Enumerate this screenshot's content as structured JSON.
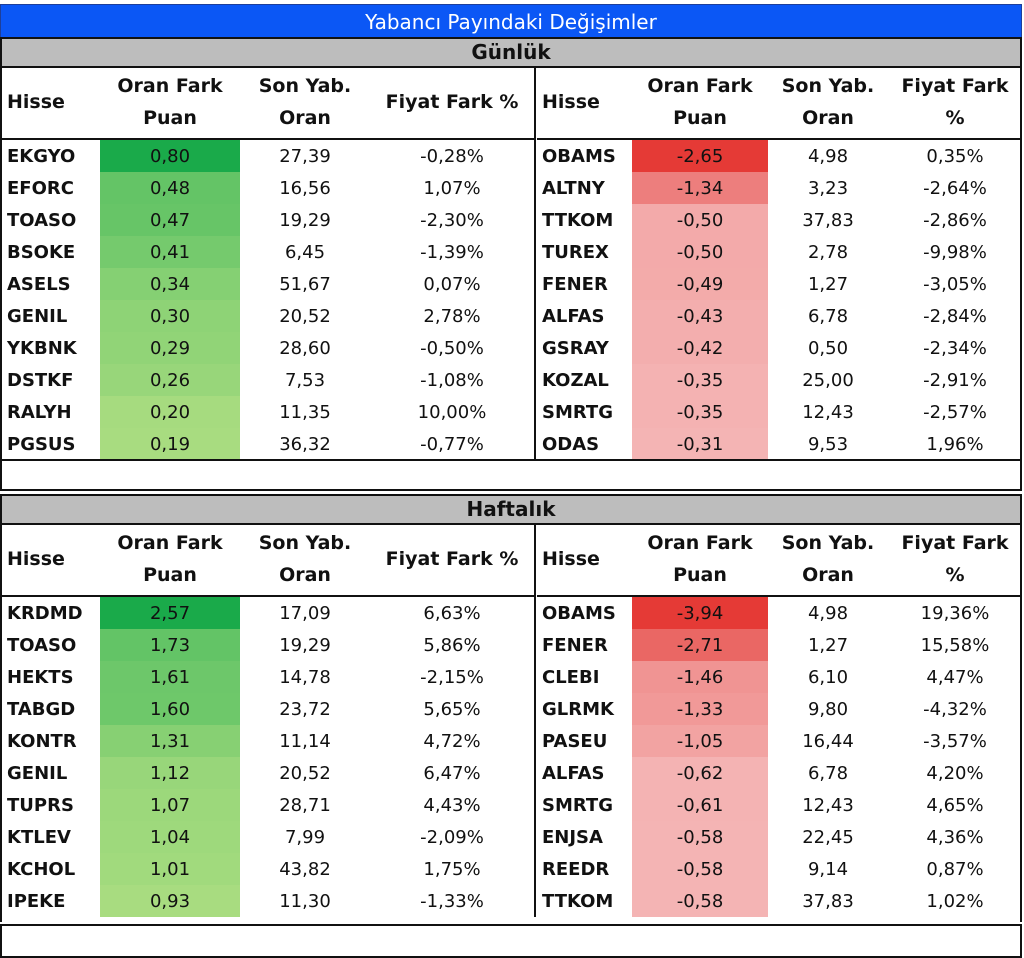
{
  "title": "Yabancı Payındaki Değişimler",
  "colors": {
    "title_bg": "#0b57f5",
    "section_bg": "#bdbdbd",
    "pos_max": "#1aaa4a",
    "pos_min": "#a8dc80",
    "neg_max": "#e53a36",
    "neg_min": "#f4b4b4"
  },
  "headers": {
    "stock": "Hisse",
    "diff_line1": "Oran Fark",
    "diff_line2": "Puan",
    "last_line1": "Son Yab.",
    "last_line2": "Oran",
    "price_left": "Fiyat Fark %",
    "price_right_line1": "Fiyat Fark",
    "price_right_line2": "%"
  },
  "daily": {
    "label": "Günlük",
    "gainers": [
      {
        "stock": "EKGYO",
        "diff": "0,80",
        "last": "27,39",
        "price": "-0,28%",
        "v": 0.8
      },
      {
        "stock": "EFORC",
        "diff": "0,48",
        "last": "16,56",
        "price": "1,07%",
        "v": 0.48
      },
      {
        "stock": "TOASO",
        "diff": "0,47",
        "last": "19,29",
        "price": "-2,30%",
        "v": 0.47
      },
      {
        "stock": "BSOKE",
        "diff": "0,41",
        "last": "6,45",
        "price": "-1,39%",
        "v": 0.41
      },
      {
        "stock": "ASELS",
        "diff": "0,34",
        "last": "51,67",
        "price": "0,07%",
        "v": 0.34
      },
      {
        "stock": "GENIL",
        "diff": "0,30",
        "last": "20,52",
        "price": "2,78%",
        "v": 0.3
      },
      {
        "stock": "YKBNK",
        "diff": "0,29",
        "last": "28,60",
        "price": "-0,50%",
        "v": 0.29
      },
      {
        "stock": "DSTKF",
        "diff": "0,26",
        "last": "7,53",
        "price": "-1,08%",
        "v": 0.26
      },
      {
        "stock": "RALYH",
        "diff": "0,20",
        "last": "11,35",
        "price": "10,00%",
        "v": 0.2
      },
      {
        "stock": "PGSUS",
        "diff": "0,19",
        "last": "36,32",
        "price": "-0,77%",
        "v": 0.19
      }
    ],
    "losers": [
      {
        "stock": "OBAMS",
        "diff": "-2,65",
        "last": "4,98",
        "price": "0,35%",
        "v": -2.65
      },
      {
        "stock": "ALTNY",
        "diff": "-1,34",
        "last": "3,23",
        "price": "-2,64%",
        "v": -1.34
      },
      {
        "stock": "TTKOM",
        "diff": "-0,50",
        "last": "37,83",
        "price": "-2,86%",
        "v": -0.5
      },
      {
        "stock": "TUREX",
        "diff": "-0,50",
        "last": "2,78",
        "price": "-9,98%",
        "v": -0.5
      },
      {
        "stock": "FENER",
        "diff": "-0,49",
        "last": "1,27",
        "price": "-3,05%",
        "v": -0.49
      },
      {
        "stock": "ALFAS",
        "diff": "-0,43",
        "last": "6,78",
        "price": "-2,84%",
        "v": -0.43
      },
      {
        "stock": "GSRAY",
        "diff": "-0,42",
        "last": "0,50",
        "price": "-2,34%",
        "v": -0.42
      },
      {
        "stock": "KOZAL",
        "diff": "-0,35",
        "last": "25,00",
        "price": "-2,91%",
        "v": -0.35
      },
      {
        "stock": "SMRTG",
        "diff": "-0,35",
        "last": "12,43",
        "price": "-2,57%",
        "v": -0.35
      },
      {
        "stock": "ODAS",
        "diff": "-0,31",
        "last": "9,53",
        "price": "1,96%",
        "v": -0.31
      }
    ]
  },
  "weekly": {
    "label": "Haftalık",
    "gainers": [
      {
        "stock": "KRDMD",
        "diff": "2,57",
        "last": "17,09",
        "price": "6,63%",
        "v": 2.57
      },
      {
        "stock": "TOASO",
        "diff": "1,73",
        "last": "19,29",
        "price": "5,86%",
        "v": 1.73
      },
      {
        "stock": "HEKTS",
        "diff": "1,61",
        "last": "14,78",
        "price": "-2,15%",
        "v": 1.61
      },
      {
        "stock": "TABGD",
        "diff": "1,60",
        "last": "23,72",
        "price": "5,65%",
        "v": 1.6
      },
      {
        "stock": "KONTR",
        "diff": "1,31",
        "last": "11,14",
        "price": "4,72%",
        "v": 1.31
      },
      {
        "stock": "GENIL",
        "diff": "1,12",
        "last": "20,52",
        "price": "6,47%",
        "v": 1.12
      },
      {
        "stock": "TUPRS",
        "diff": "1,07",
        "last": "28,71",
        "price": "4,43%",
        "v": 1.07
      },
      {
        "stock": "KTLEV",
        "diff": "1,04",
        "last": "7,99",
        "price": "-2,09%",
        "v": 1.04
      },
      {
        "stock": "KCHOL",
        "diff": "1,01",
        "last": "43,82",
        "price": "1,75%",
        "v": 1.01
      },
      {
        "stock": "IPEKE",
        "diff": "0,93",
        "last": "11,30",
        "price": "-1,33%",
        "v": 0.93
      }
    ],
    "losers": [
      {
        "stock": "OBAMS",
        "diff": "-3,94",
        "last": "4,98",
        "price": "19,36%",
        "v": -3.94
      },
      {
        "stock": "FENER",
        "diff": "-2,71",
        "last": "1,27",
        "price": "15,58%",
        "v": -2.71
      },
      {
        "stock": "CLEBI",
        "diff": "-1,46",
        "last": "6,10",
        "price": "4,47%",
        "v": -1.46
      },
      {
        "stock": "GLRMK",
        "diff": "-1,33",
        "last": "9,80",
        "price": "-4,32%",
        "v": -1.33
      },
      {
        "stock": "PASEU",
        "diff": "-1,05",
        "last": "16,44",
        "price": "-3,57%",
        "v": -1.05
      },
      {
        "stock": "ALFAS",
        "diff": "-0,62",
        "last": "6,78",
        "price": "4,20%",
        "v": -0.62
      },
      {
        "stock": "SMRTG",
        "diff": "-0,61",
        "last": "12,43",
        "price": "4,65%",
        "v": -0.61
      },
      {
        "stock": "ENJSA",
        "diff": "-0,58",
        "last": "22,45",
        "price": "4,36%",
        "v": -0.58
      },
      {
        "stock": "REEDR",
        "diff": "-0,58",
        "last": "9,14",
        "price": "0,87%",
        "v": -0.58
      },
      {
        "stock": "TTKOM",
        "diff": "-0,58",
        "last": "37,83",
        "price": "1,02%",
        "v": -0.58
      }
    ]
  }
}
